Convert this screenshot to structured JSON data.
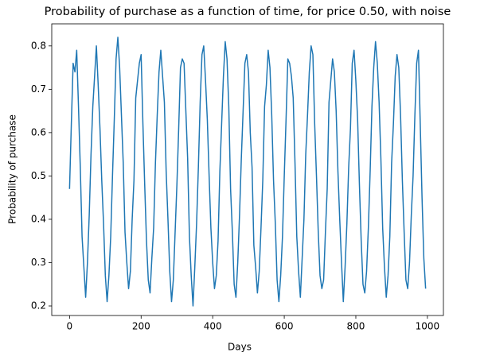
{
  "chart_data": {
    "type": "line",
    "title": "Probability of purchase as a function of time, for price 0.50, with noise",
    "x_label": "Days",
    "y_label": "Probability of purchase",
    "xlim": [
      -49.75,
      1044.75
    ],
    "ylim": [
      0.178,
      0.851
    ],
    "xticks": [
      0,
      200,
      400,
      600,
      800,
      1000
    ],
    "yticks": [
      0.2,
      0.3,
      0.4,
      0.5,
      0.6,
      0.7,
      0.8
    ],
    "grid": false,
    "series": [
      {
        "name": "Probability of purchase",
        "color": "#1f77b4",
        "x": [
          0,
          5,
          10,
          15,
          20,
          25,
          30,
          35,
          40,
          45,
          50,
          55,
          60,
          65,
          70,
          75,
          80,
          85,
          90,
          95,
          100,
          105,
          110,
          115,
          120,
          125,
          130,
          135,
          140,
          145,
          150,
          155,
          160,
          165,
          170,
          175,
          180,
          185,
          190,
          195,
          200,
          205,
          210,
          215,
          220,
          225,
          230,
          235,
          240,
          245,
          250,
          255,
          260,
          265,
          270,
          275,
          280,
          285,
          290,
          295,
          300,
          305,
          310,
          315,
          320,
          325,
          330,
          335,
          340,
          345,
          350,
          355,
          360,
          365,
          370,
          375,
          380,
          385,
          390,
          395,
          400,
          405,
          410,
          415,
          420,
          425,
          430,
          435,
          440,
          445,
          450,
          455,
          460,
          465,
          470,
          475,
          480,
          485,
          490,
          495,
          500,
          505,
          510,
          515,
          520,
          525,
          530,
          535,
          540,
          545,
          550,
          555,
          560,
          565,
          570,
          575,
          580,
          585,
          590,
          595,
          600,
          605,
          610,
          615,
          620,
          625,
          630,
          635,
          640,
          645,
          650,
          655,
          660,
          665,
          670,
          675,
          680,
          685,
          690,
          695,
          700,
          705,
          710,
          715,
          720,
          725,
          730,
          735,
          740,
          745,
          750,
          755,
          760,
          765,
          770,
          775,
          780,
          785,
          790,
          795,
          800,
          805,
          810,
          815,
          820,
          825,
          830,
          835,
          840,
          845,
          850,
          855,
          860,
          865,
          870,
          875,
          880,
          885,
          890,
          895,
          900,
          905,
          910,
          915,
          920,
          925,
          930,
          935,
          940,
          945,
          950,
          955,
          960,
          965,
          970,
          975,
          980,
          985,
          990,
          995
        ],
        "values": [
          0.47,
          0.62,
          0.76,
          0.74,
          0.79,
          0.66,
          0.52,
          0.36,
          0.29,
          0.22,
          0.3,
          0.41,
          0.55,
          0.66,
          0.73,
          0.8,
          0.71,
          0.61,
          0.49,
          0.39,
          0.27,
          0.21,
          0.27,
          0.36,
          0.5,
          0.63,
          0.77,
          0.82,
          0.75,
          0.64,
          0.53,
          0.37,
          0.3,
          0.24,
          0.28,
          0.4,
          0.49,
          0.68,
          0.72,
          0.76,
          0.78,
          0.62,
          0.48,
          0.35,
          0.26,
          0.23,
          0.31,
          0.38,
          0.53,
          0.64,
          0.74,
          0.79,
          0.73,
          0.67,
          0.51,
          0.4,
          0.28,
          0.21,
          0.26,
          0.37,
          0.48,
          0.61,
          0.75,
          0.77,
          0.76,
          0.65,
          0.54,
          0.36,
          0.27,
          0.2,
          0.29,
          0.39,
          0.52,
          0.67,
          0.78,
          0.8,
          0.72,
          0.63,
          0.5,
          0.38,
          0.3,
          0.24,
          0.27,
          0.35,
          0.51,
          0.62,
          0.73,
          0.81,
          0.77,
          0.66,
          0.47,
          0.37,
          0.25,
          0.22,
          0.3,
          0.41,
          0.54,
          0.65,
          0.76,
          0.78,
          0.74,
          0.6,
          0.52,
          0.34,
          0.29,
          0.23,
          0.28,
          0.38,
          0.49,
          0.66,
          0.71,
          0.79,
          0.75,
          0.64,
          0.49,
          0.39,
          0.26,
          0.21,
          0.27,
          0.36,
          0.5,
          0.63,
          0.77,
          0.76,
          0.73,
          0.68,
          0.53,
          0.36,
          0.28,
          0.22,
          0.31,
          0.4,
          0.55,
          0.64,
          0.74,
          0.8,
          0.78,
          0.62,
          0.5,
          0.37,
          0.27,
          0.24,
          0.26,
          0.37,
          0.47,
          0.67,
          0.72,
          0.77,
          0.74,
          0.65,
          0.51,
          0.4,
          0.3,
          0.21,
          0.29,
          0.39,
          0.52,
          0.61,
          0.76,
          0.79,
          0.72,
          0.63,
          0.48,
          0.35,
          0.25,
          0.23,
          0.28,
          0.38,
          0.51,
          0.66,
          0.75,
          0.81,
          0.76,
          0.67,
          0.54,
          0.38,
          0.29,
          0.22,
          0.27,
          0.36,
          0.53,
          0.62,
          0.73,
          0.78,
          0.75,
          0.64,
          0.49,
          0.37,
          0.26,
          0.24,
          0.3,
          0.41,
          0.5,
          0.64,
          0.76,
          0.79,
          0.62,
          0.45,
          0.31,
          0.24
        ]
      }
    ]
  }
}
